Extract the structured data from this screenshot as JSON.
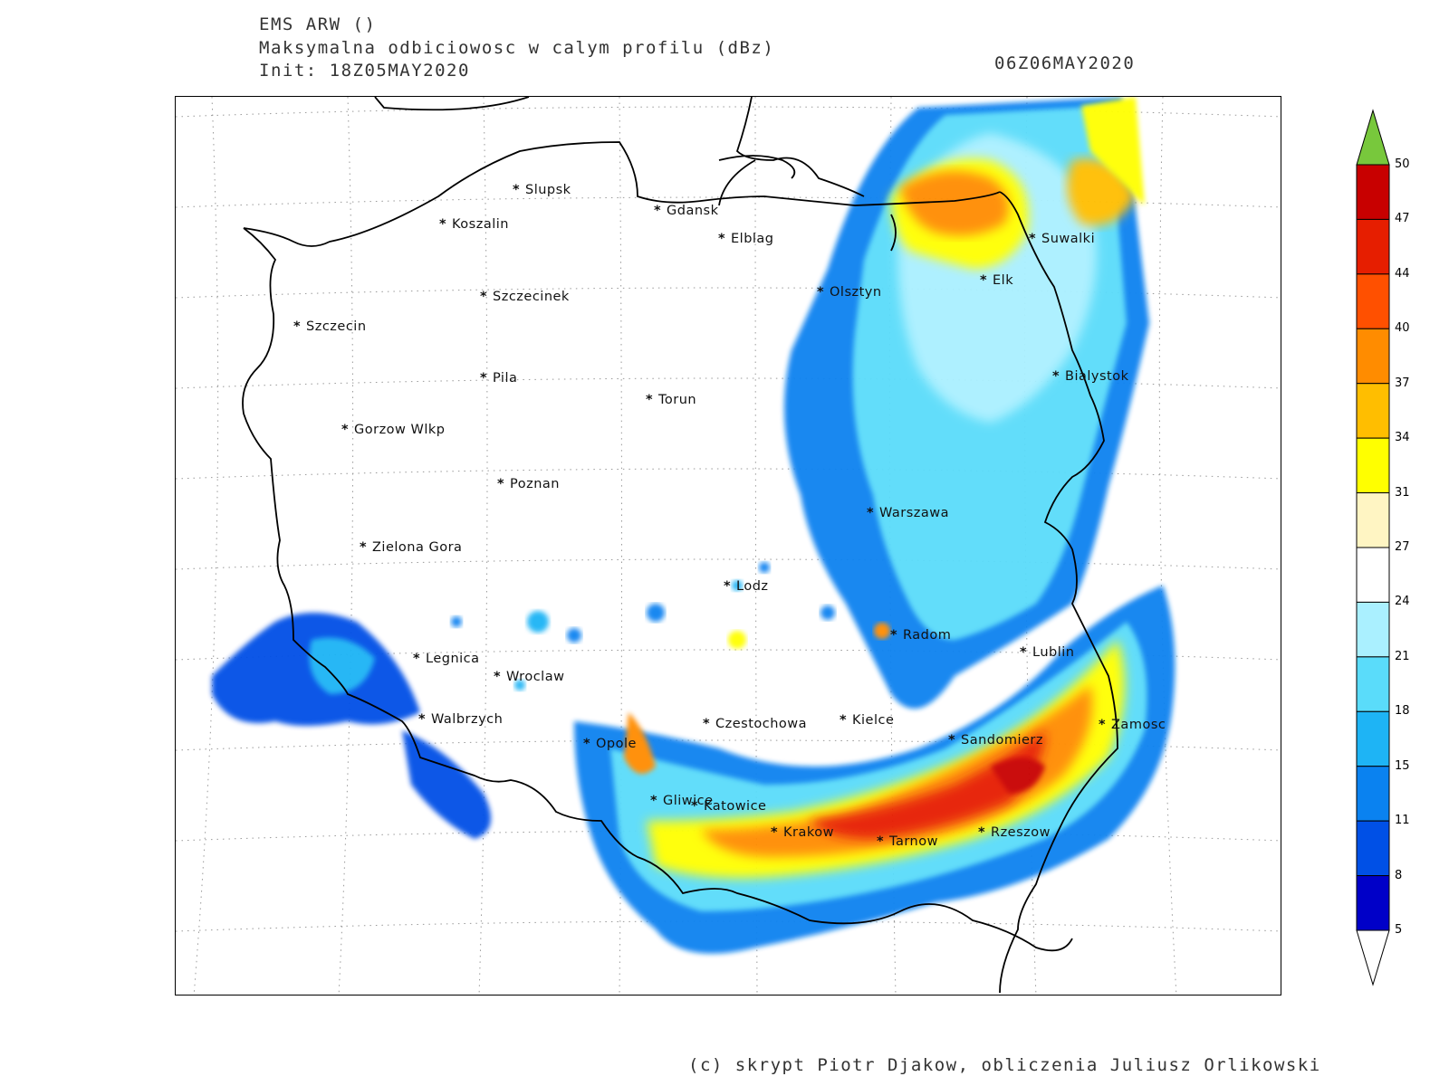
{
  "header": {
    "model": "EMS ARW ()",
    "field": "Maksymalna odbiciowosc w calym profilu (dBz)",
    "init": "Init: 18Z05MAY2020",
    "valid": "06Z06MAY2020"
  },
  "legend": {
    "unit": "dBz",
    "levels": [
      "5",
      "8",
      "11",
      "15",
      "18",
      "21",
      "24",
      "27",
      "31",
      "34",
      "37",
      "40",
      "44",
      "47",
      "50"
    ],
    "colors": [
      "#0000c8",
      "#0050e6",
      "#0a82f0",
      "#1eb4f5",
      "#5adcfa",
      "#aaf0ff",
      "#ffffff",
      "#fff5c3",
      "#ffff00",
      "#ffbe00",
      "#ff8c00",
      "#ff5000",
      "#e61e00",
      "#c80000",
      "#78c83c"
    ]
  },
  "cities": [
    {
      "name": "Slupsk"
    },
    {
      "name": "Gdansk"
    },
    {
      "name": "Koszalin"
    },
    {
      "name": "Elblag"
    },
    {
      "name": "Suwalki"
    },
    {
      "name": "Elk"
    },
    {
      "name": "Olsztyn"
    },
    {
      "name": "Szczecinek"
    },
    {
      "name": "Szczecin"
    },
    {
      "name": "Bialystok"
    },
    {
      "name": "Pila"
    },
    {
      "name": "Torun"
    },
    {
      "name": "Gorzow Wlkp"
    },
    {
      "name": "Poznan"
    },
    {
      "name": "Warszawa"
    },
    {
      "name": "Zielona Gora"
    },
    {
      "name": "Lodz"
    },
    {
      "name": "Radom"
    },
    {
      "name": "Lublin"
    },
    {
      "name": "Legnica"
    },
    {
      "name": "Wroclaw"
    },
    {
      "name": "Walbrzych"
    },
    {
      "name": "Czestochowa"
    },
    {
      "name": "Kielce"
    },
    {
      "name": "Zamosc"
    },
    {
      "name": "Opole"
    },
    {
      "name": "Sandomierz"
    },
    {
      "name": "Gliwice"
    },
    {
      "name": "Katowice"
    },
    {
      "name": "Krakow"
    },
    {
      "name": "Tarnow"
    },
    {
      "name": "Rzeszow"
    }
  ],
  "credit": "(c) skrypt Piotr Djakow, obliczenia Juliusz Orlikowski"
}
